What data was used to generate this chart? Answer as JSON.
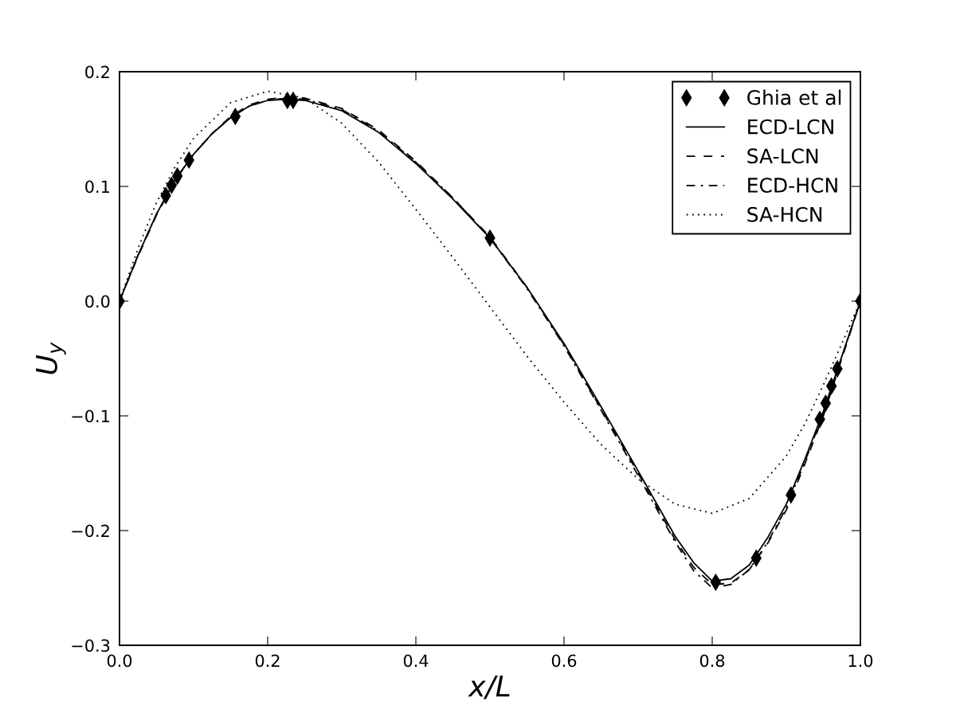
{
  "chart_data": {
    "type": "line",
    "xlabel": "x/L",
    "ylabel": "U$_{y}$",
    "xlim": [
      0,
      1
    ],
    "ylim": [
      -0.3,
      0.2
    ],
    "xticks": [
      {
        "value": 0,
        "label": "0.0"
      },
      0.2,
      0.4,
      0.6,
      0.8,
      {
        "value": 1,
        "label": "1.0"
      }
    ],
    "yticks": [
      {
        "value": -0.3,
        "label": "−0.3"
      },
      {
        "value": -0.2,
        "label": "−0.2"
      },
      {
        "value": -0.1,
        "label": "−0.1"
      },
      {
        "value": 0,
        "label": "0.0"
      },
      0.1,
      0.2
    ],
    "legend": "top right",
    "grid": false,
    "series": [
      {
        "name": "Ghia et al",
        "type": "scatter",
        "marker": "diamond",
        "color": "#000000",
        "x": [
          0.0,
          0.0625,
          0.0703,
          0.0781,
          0.0938,
          0.1563,
          0.2266,
          0.2344,
          0.5,
          0.8047,
          0.8594,
          0.9063,
          0.9453,
          0.9531,
          0.9609,
          0.9688,
          1.0
        ],
        "values": [
          0.0,
          0.092,
          0.101,
          0.109,
          0.123,
          0.161,
          0.175,
          0.175,
          0.055,
          -0.245,
          -0.224,
          -0.169,
          -0.103,
          -0.089,
          -0.074,
          -0.059,
          0.0
        ]
      },
      {
        "name": "ECD-LCN",
        "line_style": "solid",
        "color": "#000000",
        "x": [
          0,
          0.025,
          0.05,
          0.075,
          0.1,
          0.125,
          0.15,
          0.175,
          0.2,
          0.225,
          0.25,
          0.3,
          0.35,
          0.4,
          0.45,
          0.5,
          0.55,
          0.6,
          0.65,
          0.7,
          0.75,
          0.775,
          0.8,
          0.825,
          0.85,
          0.875,
          0.9,
          0.925,
          0.95,
          0.975,
          1.0
        ],
        "values": [
          0,
          0.04,
          0.076,
          0.106,
          0.128,
          0.146,
          0.16,
          0.17,
          0.175,
          0.176,
          0.175,
          0.166,
          0.147,
          0.12,
          0.089,
          0.055,
          0.012,
          -0.037,
          -0.092,
          -0.148,
          -0.205,
          -0.228,
          -0.244,
          -0.242,
          -0.23,
          -0.206,
          -0.177,
          -0.138,
          -0.096,
          -0.048,
          0
        ]
      },
      {
        "name": "SA-LCN",
        "line_style": "dashed",
        "color": "#000000",
        "x": [
          0,
          0.025,
          0.05,
          0.075,
          0.1,
          0.125,
          0.15,
          0.175,
          0.2,
          0.225,
          0.25,
          0.3,
          0.35,
          0.4,
          0.45,
          0.5,
          0.55,
          0.6,
          0.65,
          0.7,
          0.75,
          0.775,
          0.8,
          0.825,
          0.85,
          0.875,
          0.9,
          0.925,
          0.95,
          0.975,
          1.0
        ],
        "values": [
          0,
          0.039,
          0.075,
          0.105,
          0.128,
          0.146,
          0.161,
          0.171,
          0.176,
          0.178,
          0.177,
          0.168,
          0.149,
          0.122,
          0.09,
          0.056,
          0.012,
          -0.038,
          -0.094,
          -0.15,
          -0.208,
          -0.232,
          -0.247,
          -0.246,
          -0.234,
          -0.211,
          -0.182,
          -0.142,
          -0.1,
          -0.05,
          0
        ]
      },
      {
        "name": "ECD-HCN",
        "line_style": "dashdot",
        "color": "#000000",
        "x": [
          0,
          0.025,
          0.05,
          0.075,
          0.1,
          0.125,
          0.15,
          0.175,
          0.2,
          0.225,
          0.25,
          0.3,
          0.35,
          0.4,
          0.45,
          0.5,
          0.55,
          0.6,
          0.65,
          0.7,
          0.75,
          0.775,
          0.8,
          0.825,
          0.85,
          0.875,
          0.9,
          0.925,
          0.95,
          0.975,
          1.0
        ],
        "values": [
          0,
          0.04,
          0.076,
          0.106,
          0.128,
          0.146,
          0.16,
          0.17,
          0.175,
          0.177,
          0.176,
          0.167,
          0.148,
          0.121,
          0.09,
          0.055,
          0.011,
          -0.039,
          -0.095,
          -0.152,
          -0.21,
          -0.235,
          -0.25,
          -0.247,
          -0.234,
          -0.21,
          -0.18,
          -0.14,
          -0.098,
          -0.049,
          0
        ]
      },
      {
        "name": "SA-HCN",
        "line_style": "dotted",
        "color": "#000000",
        "x": [
          0,
          0.025,
          0.05,
          0.075,
          0.1,
          0.15,
          0.2,
          0.25,
          0.3,
          0.35,
          0.4,
          0.45,
          0.5,
          0.55,
          0.6,
          0.65,
          0.7,
          0.75,
          0.8,
          0.85,
          0.9,
          0.925,
          0.95,
          0.975,
          1.0
        ],
        "values": [
          0,
          0.046,
          0.086,
          0.117,
          0.142,
          0.173,
          0.183,
          0.177,
          0.155,
          0.121,
          0.08,
          0.038,
          -0.005,
          -0.048,
          -0.088,
          -0.125,
          -0.155,
          -0.177,
          -0.185,
          -0.172,
          -0.135,
          -0.107,
          -0.073,
          -0.037,
          0
        ]
      }
    ]
  }
}
